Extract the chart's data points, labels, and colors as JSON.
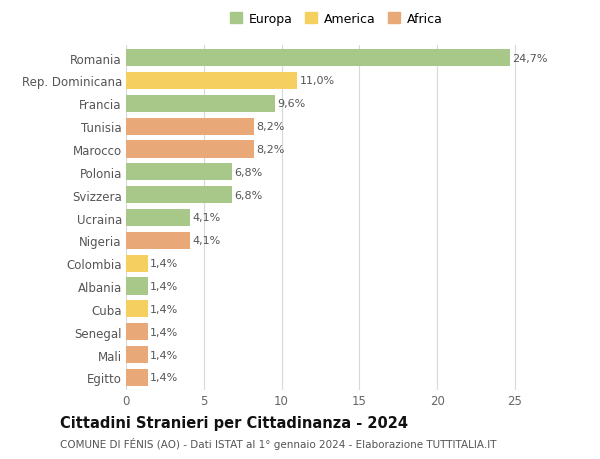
{
  "countries": [
    "Romania",
    "Rep. Dominicana",
    "Francia",
    "Tunisia",
    "Marocco",
    "Polonia",
    "Svizzera",
    "Ucraina",
    "Nigeria",
    "Colombia",
    "Albania",
    "Cuba",
    "Senegal",
    "Mali",
    "Egitto"
  ],
  "values": [
    24.7,
    11.0,
    9.6,
    8.2,
    8.2,
    6.8,
    6.8,
    4.1,
    4.1,
    1.4,
    1.4,
    1.4,
    1.4,
    1.4,
    1.4
  ],
  "labels": [
    "24,7%",
    "11,0%",
    "9,6%",
    "8,2%",
    "8,2%",
    "6,8%",
    "6,8%",
    "4,1%",
    "4,1%",
    "1,4%",
    "1,4%",
    "1,4%",
    "1,4%",
    "1,4%",
    "1,4%"
  ],
  "continents": [
    "Europa",
    "America",
    "Europa",
    "Africa",
    "Africa",
    "Europa",
    "Europa",
    "Europa",
    "Africa",
    "America",
    "Europa",
    "America",
    "Africa",
    "Africa",
    "Africa"
  ],
  "colors": {
    "Europa": "#a8c88a",
    "America": "#f5d060",
    "Africa": "#e8a878"
  },
  "title": "Cittadini Stranieri per Cittadinanza - 2024",
  "subtitle": "COMUNE DI FÉNIS (AO) - Dati ISTAT al 1° gennaio 2024 - Elaborazione TUTTITALIA.IT",
  "xlim": [
    0,
    27
  ],
  "background_color": "#ffffff",
  "bar_height": 0.75,
  "grid_color": "#d8d8d8",
  "label_fontsize": 8,
  "ytick_fontsize": 8.5,
  "xtick_fontsize": 8.5,
  "title_fontsize": 10.5,
  "subtitle_fontsize": 7.5
}
